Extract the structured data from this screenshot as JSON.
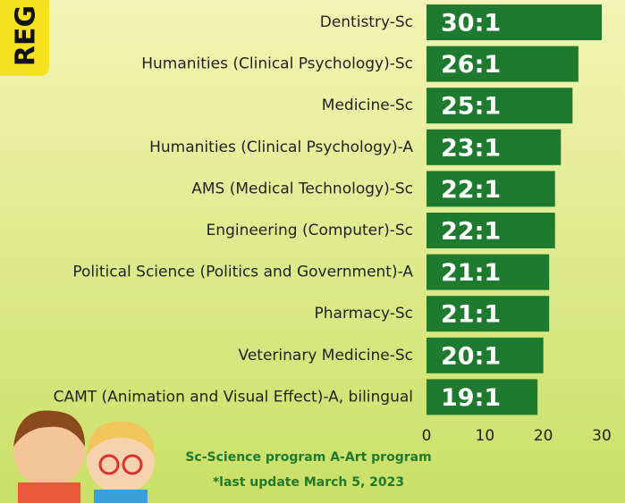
{
  "chart_data": {
    "type": "barh",
    "side_label": "REG",
    "categories": [
      "Dentistry-Sc",
      "Humanities (Clinical Psychology)-Sc",
      "Medicine-Sc",
      "Humanities (Clinical Psychology)-A",
      "AMS (Medical Technology)-Sc",
      "Engineering (Computer)-Sc",
      "Political Science (Politics and Government)-A",
      "Pharmacy-Sc",
      "Veterinary Medicine-Sc",
      "CAMT (Animation and Visual Effect)-A, bilingual"
    ],
    "values": [
      30,
      26,
      25,
      23,
      22,
      22,
      21,
      21,
      20,
      19
    ],
    "value_labels": [
      "30:1",
      "26:1",
      "25:1",
      "23:1",
      "22:1",
      "22:1",
      "21:1",
      "21:1",
      "20:1",
      "19:1"
    ],
    "color": "#1e7a2e",
    "xlim": [
      0,
      30
    ],
    "xticks": [
      0,
      10,
      20,
      30
    ],
    "notes": [
      "Sc-Science program  A-Art program",
      "*last update March 5, 2023"
    ]
  }
}
